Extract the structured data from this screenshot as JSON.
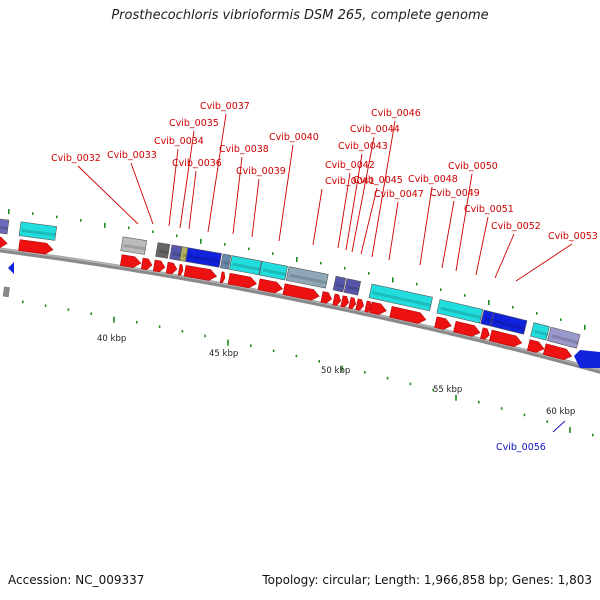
{
  "title": "Prosthecochloris vibrioformis DSM 265, complete genome",
  "footer": {
    "accession": "Accession: NC_009337",
    "summary": "Topology: circular; Length: 1,966,858 bp; Genes: 1,803"
  },
  "scale_labels": [
    "40 kbp",
    "45 kbp",
    "50 kbp",
    "55 kbp",
    "60 kbp"
  ],
  "gene_labels": [
    {
      "name": "Cvib_0032",
      "color": "#cc0000"
    },
    {
      "name": "Cvib_0033",
      "color": "#cc0000"
    },
    {
      "name": "Cvib_0034",
      "color": "#cc0000"
    },
    {
      "name": "Cvib_0035",
      "color": "#cc0000"
    },
    {
      "name": "Cvib_0036",
      "color": "#cc0000"
    },
    {
      "name": "Cvib_0037",
      "color": "#cc0000"
    },
    {
      "name": "Cvib_0038",
      "color": "#cc0000"
    },
    {
      "name": "Cvib_0039",
      "color": "#cc0000"
    },
    {
      "name": "Cvib_0040",
      "color": "#cc0000"
    },
    {
      "name": "Cvib_0041",
      "color": "#cc0000"
    },
    {
      "name": "Cvib_0042",
      "color": "#cc0000"
    },
    {
      "name": "Cvib_0043",
      "color": "#cc0000"
    },
    {
      "name": "Cvib_0044",
      "color": "#cc0000"
    },
    {
      "name": "Cvib_0045",
      "color": "#cc0000"
    },
    {
      "name": "Cvib_0046",
      "color": "#cc0000"
    },
    {
      "name": "Cvib_0047",
      "color": "#cc0000"
    },
    {
      "name": "Cvib_0048",
      "color": "#cc0000"
    },
    {
      "name": "Cvib_0049",
      "color": "#cc0000"
    },
    {
      "name": "Cvib_0050",
      "color": "#cc0000"
    },
    {
      "name": "Cvib_0051",
      "color": "#cc0000"
    },
    {
      "name": "Cvib_0052",
      "color": "#cc0000"
    },
    {
      "name": "Cvib_0053",
      "color": "#cc0000"
    },
    {
      "name": "Cvib_0056",
      "color": "#1010c0"
    }
  ],
  "colors": {
    "forward_gene": "#ee1111",
    "backbone": "#8a8a8a",
    "tick": "#1a8a1a",
    "cog_cyan": "#22dddd",
    "cog_blue": "#1122dd",
    "cog_gray": "#bbbbbb",
    "cog_purple": "#5555aa"
  }
}
